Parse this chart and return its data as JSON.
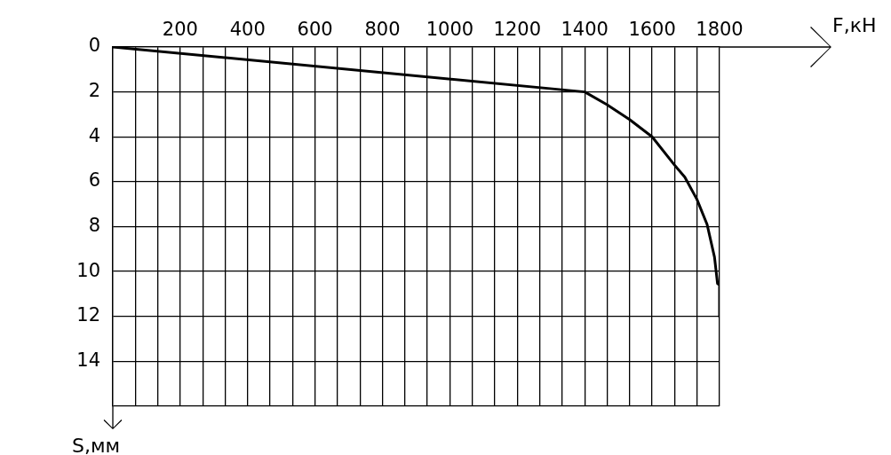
{
  "chart_data": {
    "type": "line",
    "xlabel": "F,кН",
    "ylabel": "S,мм",
    "x": [
      0,
      1400,
      1465,
      1533,
      1600,
      1666,
      1697,
      1733,
      1763,
      1785,
      1794,
      1800,
      1800
    ],
    "series": [
      {
        "color": "#000000",
        "values": [
          0,
          2,
          2.56,
          3.23,
          4,
          5.25,
          5.8,
          6.79,
          7.9,
          9.36,
          10.54,
          10.6,
          12
        ]
      }
    ],
    "xlim": [
      0,
      1800
    ],
    "ylim": [
      16,
      0
    ],
    "xticks": [
      {
        "value": 0,
        "label": null
      },
      {
        "value": 66.67,
        "label": null
      },
      {
        "value": 133.33,
        "label": null
      },
      200,
      {
        "value": 266.67,
        "label": null
      },
      {
        "value": 333.33,
        "label": null
      },
      400,
      {
        "value": 466.67,
        "label": null
      },
      {
        "value": 533.33,
        "label": null
      },
      600,
      {
        "value": 666.67,
        "label": null
      },
      {
        "value": 733.33,
        "label": null
      },
      800,
      {
        "value": 866.67,
        "label": null
      },
      {
        "value": 933.33,
        "label": null
      },
      1000,
      {
        "value": 1066.67,
        "label": null
      },
      {
        "value": 1133.33,
        "label": null
      },
      1200,
      {
        "value": 1266.67,
        "label": null
      },
      {
        "value": 1333.33,
        "label": null
      },
      1400,
      {
        "value": 1466.67,
        "label": null
      },
      {
        "value": 1533.33,
        "label": null
      },
      1600,
      {
        "value": 1666.67,
        "label": null
      },
      {
        "value": 1733.33,
        "label": null
      },
      1800
    ],
    "yticks": [
      0,
      2,
      4,
      6,
      8,
      10,
      12,
      14,
      {
        "value": 16,
        "label": null
      }
    ],
    "grid": true,
    "marker": "none",
    "line_style": "solid"
  }
}
